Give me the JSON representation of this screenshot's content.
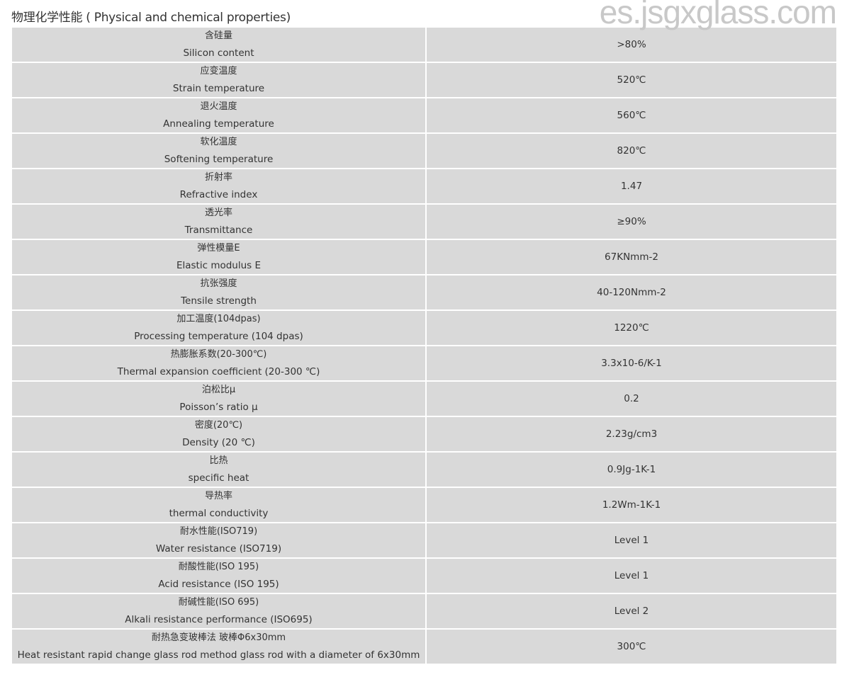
{
  "title": "物理化学性能 ( Physical and chemical properties)",
  "rows": [
    {
      "zh": "含硅量",
      "en": "Silicon content",
      "value": ">80%"
    },
    {
      "zh": "应变温度",
      "en": "Strain temperature",
      "value": "520℃"
    },
    {
      "zh": "退火温度",
      "en": "Annealing temperature",
      "value": "560℃"
    },
    {
      "zh": "软化温度",
      "en": "Softening temperature",
      "value": "820℃"
    },
    {
      "zh": "折射率",
      "en": "Refractive index",
      "value": "1.47"
    },
    {
      "zh": "透光率",
      "en": "Transmittance",
      "value": "≥90%"
    },
    {
      "zh": "弹性模量E",
      "en": "Elastic modulus E",
      "value": "67KNmm-2"
    },
    {
      "zh": "抗张强度",
      "en": "Tensile strength",
      "value": "40-120Nmm-2"
    },
    {
      "zh": "加工温度(104dpas)",
      "en": "Processing temperature (104 dpas)",
      "value": "1220℃"
    },
    {
      "zh": "热膨胀系数(20-300℃)",
      "en": "Thermal expansion coefficient (20-300 ℃)",
      "value": "3.3x10-6/K-1"
    },
    {
      "zh": "泊松比μ",
      "en": "Poisson’s ratio  μ",
      "value": "0.2"
    },
    {
      "zh": "密度(20℃)",
      "en": "Density (20 ℃)",
      "value": "2.23g/cm3"
    },
    {
      "zh": "比热",
      "en": "specific heat",
      "value": "0.9Jg-1K-1"
    },
    {
      "zh": "导热率",
      "en": "thermal conductivity",
      "value": "1.2Wm-1K-1"
    },
    {
      "zh": "耐水性能(ISO719)",
      "en": "Water resistance (ISO719)",
      "value": "Level 1"
    },
    {
      "zh": "耐酸性能(ISO 195)",
      "en": "Acid resistance (ISO 195)",
      "value": "Level 1"
    },
    {
      "zh": "耐碱性能(ISO 695)",
      "en": "Alkali resistance performance (ISO695)",
      "value": "Level 2"
    },
    {
      "zh": "耐热急变玻棒法 玻棒Φ6x30mm",
      "en": "Heat resistant rapid change glass rod method glass rod with a diameter of 6x30mm",
      "value": "300℃"
    }
  ],
  "watermark": "es.jsgxglass.com"
}
